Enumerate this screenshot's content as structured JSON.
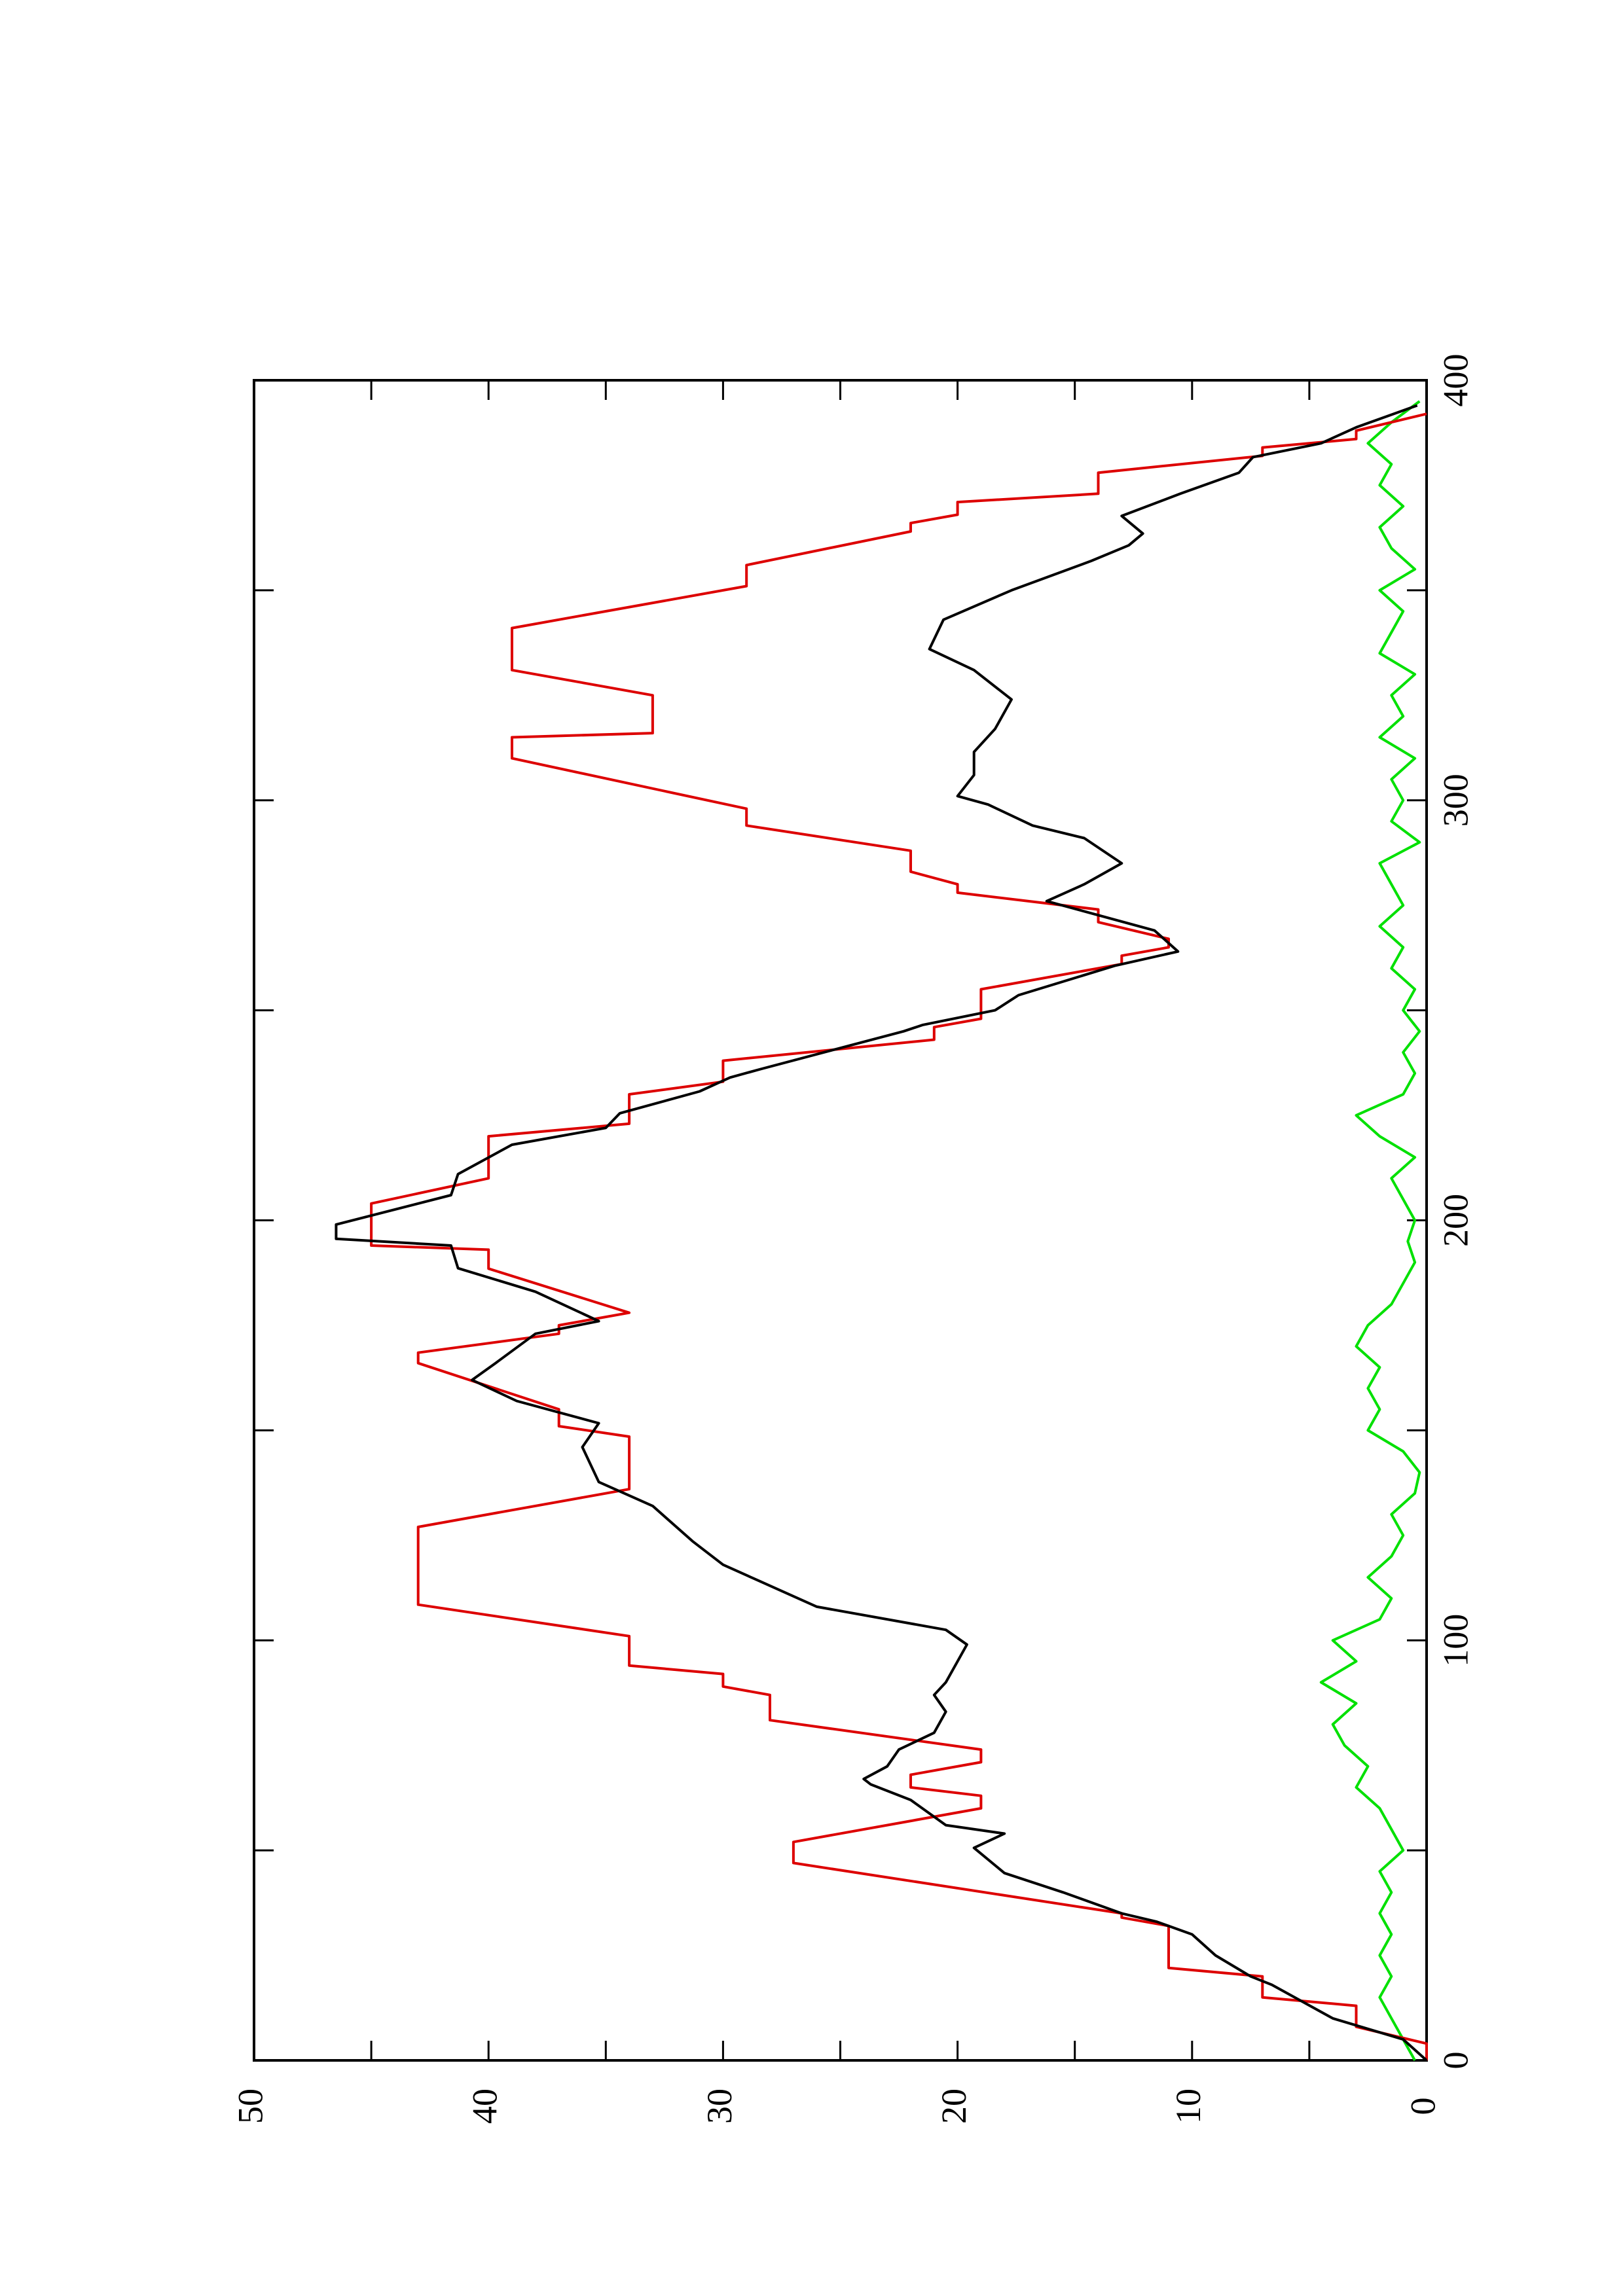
{
  "chart_data": {
    "type": "line",
    "xlim": [
      0,
      400
    ],
    "xticks": [
      0,
      100,
      200,
      300,
      400
    ],
    "ylim": [
      0,
      50
    ],
    "yticks": [
      0,
      10,
      20,
      30,
      40,
      50
    ],
    "series": [
      {
        "color": "#00e000",
        "x": [
          0,
          5,
          10,
          15,
          20,
          25,
          30,
          35,
          40,
          45,
          50,
          55,
          60,
          65,
          70,
          75,
          80,
          85,
          90,
          95,
          100,
          105,
          110,
          115,
          120,
          125,
          130,
          135,
          140,
          145,
          150,
          155,
          160,
          165,
          170,
          175,
          180,
          185,
          190,
          195,
          200,
          205,
          210,
          215,
          220,
          225,
          230,
          235,
          240,
          245,
          250,
          255,
          260,
          265,
          270,
          275,
          280,
          285,
          290,
          295,
          300,
          305,
          310,
          315,
          320,
          325,
          330,
          335,
          340,
          345,
          350,
          355,
          360,
          365,
          370,
          375,
          380,
          385,
          390,
          395
        ],
        "values": [
          0.5,
          1,
          1.5,
          2,
          1.5,
          2,
          1.5,
          2,
          1.5,
          2,
          1,
          1.5,
          2,
          3,
          2.5,
          3.5,
          4,
          3,
          4.5,
          3,
          4,
          2,
          1.5,
          2.5,
          1.5,
          1,
          1.5,
          0.5,
          0.3,
          1,
          2.5,
          2,
          2.5,
          2,
          3,
          2.5,
          1.5,
          1,
          0.5,
          0.8,
          0.5,
          1,
          1.5,
          0.5,
          2,
          3,
          1,
          0.5,
          1,
          0.3,
          1,
          0.5,
          1.5,
          1,
          2,
          1,
          1.5,
          2,
          0.3,
          1.5,
          1,
          1.5,
          0.5,
          2,
          1,
          1.5,
          0.5,
          2,
          1.5,
          1,
          2,
          0.5,
          1.5,
          2,
          1,
          2,
          1.5,
          2.5,
          1.5,
          0.3
        ]
      },
      {
        "color": "#dd0000",
        "x": [
          0,
          4,
          8,
          13,
          15,
          20,
          22,
          32,
          34,
          35,
          47,
          52,
          60,
          63,
          65,
          68,
          71,
          74,
          81,
          87,
          89,
          92,
          94,
          101,
          108.5,
          127,
          136,
          148.5,
          151,
          155,
          166,
          168.5,
          173,
          175,
          178,
          188.5,
          193,
          194,
          204,
          210,
          220,
          223,
          230,
          233,
          238,
          243,
          246,
          248,
          255,
          261,
          263,
          265,
          267,
          271,
          274,
          278,
          280,
          283,
          288,
          294,
          298,
          310,
          315,
          316,
          325,
          331,
          341,
          351,
          356,
          364,
          366,
          368,
          371,
          373,
          378,
          382,
          384,
          386,
          388,
          392
        ],
        "values": [
          0,
          0,
          3,
          3,
          7,
          7,
          11,
          11,
          13,
          13,
          27,
          27,
          19,
          19,
          22,
          22,
          19,
          19,
          28,
          28,
          30,
          30,
          34,
          34,
          43,
          43,
          34,
          34,
          37,
          37,
          43,
          43,
          37,
          37,
          34,
          40,
          40,
          45,
          45,
          40,
          40,
          34,
          34,
          30,
          30,
          21,
          21,
          19,
          19,
          13,
          13,
          11,
          11,
          14,
          14,
          20,
          20,
          22,
          22,
          29,
          29,
          39,
          39,
          33,
          33,
          39,
          39,
          29,
          29,
          22,
          22,
          20,
          20,
          14,
          14,
          7,
          7,
          3,
          3,
          0
        ]
      },
      {
        "color": "#000000",
        "x": [
          0,
          5,
          10,
          18,
          20,
          25,
          30,
          33,
          35,
          40,
          44.6,
          50.6,
          54,
          56,
          62,
          65.7,
          67,
          70,
          74,
          78,
          83,
          87,
          90,
          99,
          102.5,
          108,
          113,
          118,
          123.6,
          132,
          137.7,
          146,
          151.7,
          157,
          162,
          166,
          173,
          176,
          183,
          188.6,
          194,
          195.6,
          199,
          206,
          211,
          218,
          222,
          225.5,
          230.7,
          234,
          236,
          245,
          246.5,
          250,
          253.6,
          260.6,
          264,
          269,
          276,
          280,
          285,
          291,
          294,
          299,
          301,
          306,
          311.5,
          317,
          324,
          331,
          336,
          343,
          350,
          357,
          360.7,
          363.5,
          367.7,
          373,
          378,
          381.7,
          385,
          388.8,
          394
        ],
        "values": [
          0,
          1,
          4,
          6.6,
          7.5,
          9,
          10,
          11.5,
          13,
          15.5,
          18,
          19.3,
          18,
          20.5,
          22,
          23.7,
          24,
          23,
          22.5,
          21,
          20.5,
          21,
          20.5,
          19.6,
          20.5,
          26,
          28,
          30,
          31.3,
          33,
          35.3,
          36,
          35.3,
          38.8,
          40.7,
          39.7,
          38,
          35.3,
          38,
          41.3,
          41.6,
          46.5,
          46.5,
          41.6,
          41.3,
          39,
          35,
          34.4,
          31,
          29.7,
          28.4,
          22.3,
          21.5,
          18.4,
          17.4,
          13.3,
          10.6,
          11.6,
          16.2,
          14.6,
          13,
          14.6,
          16.8,
          18.7,
          20,
          19.3,
          19.3,
          18.4,
          17.7,
          19.3,
          21.2,
          20.6,
          17.7,
          14.3,
          12.7,
          12.1,
          13,
          10.5,
          8,
          7.4,
          4.5,
          3,
          0.4
        ]
      }
    ]
  }
}
